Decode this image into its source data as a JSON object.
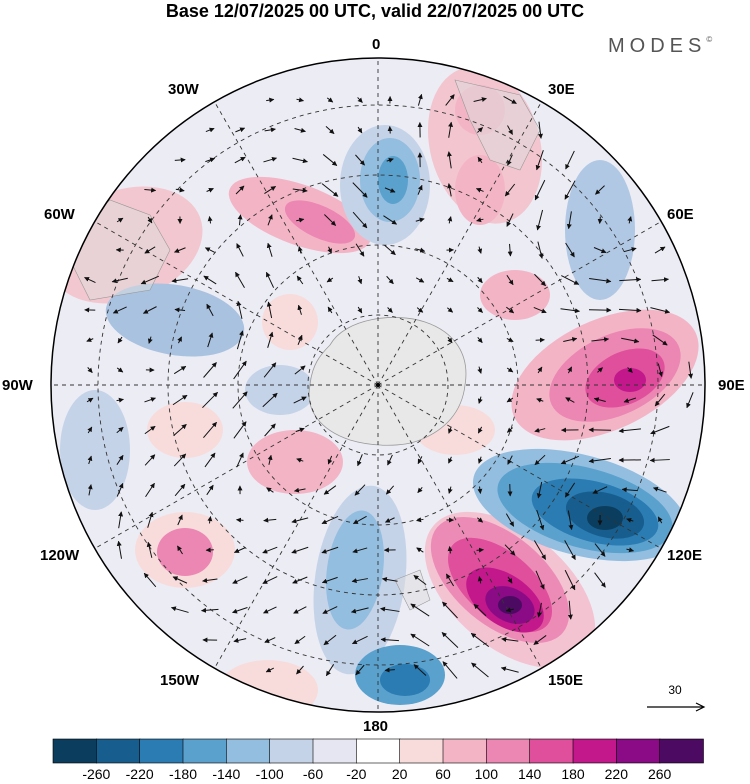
{
  "title": "Base 12/07/2025 00 UTC, valid 22/07/2025 00 UTC",
  "brand": "MODES",
  "brand_mark": "©",
  "map": {
    "projection": "south polar stereographic",
    "meridian_labels": {
      "m0": "0",
      "m30e": "30E",
      "m60e": "60E",
      "m90e": "90E",
      "m120e": "120E",
      "m150e": "150E",
      "m180": "180",
      "m150w": "150W",
      "m120w": "120W",
      "m90w": "90W",
      "m60w": "60W",
      "m30w": "30W"
    },
    "land_color": "#e8e8e8",
    "features": [
      {
        "name": "positive anomaly",
        "value": 260,
        "near": "150E"
      },
      {
        "name": "negative anomaly",
        "value": -220,
        "near": "120E"
      },
      {
        "name": "positive anomaly",
        "value": 180,
        "near": "90E"
      },
      {
        "name": "negative anomaly",
        "value": -180,
        "near": "180"
      },
      {
        "name": "negative anomaly",
        "value": -140,
        "near": "0"
      }
    ]
  },
  "reference_vector": {
    "value": "30"
  },
  "colorbar": {
    "colors": [
      "#0b3d5e",
      "#175e8e",
      "#2a7cb2",
      "#5aa1ce",
      "#93bedf",
      "#c5d3e8",
      "#e6e6f2",
      "#ffffff",
      "#f8dcdc",
      "#f3b5c6",
      "#ec86b2",
      "#df4f9c",
      "#c2188b",
      "#8b0b86",
      "#4d0a63"
    ],
    "ticks": [
      "-260",
      "-220",
      "-180",
      "-140",
      "-100",
      "-60",
      "-20",
      "20",
      "60",
      "100",
      "140",
      "180",
      "220",
      "260"
    ]
  }
}
